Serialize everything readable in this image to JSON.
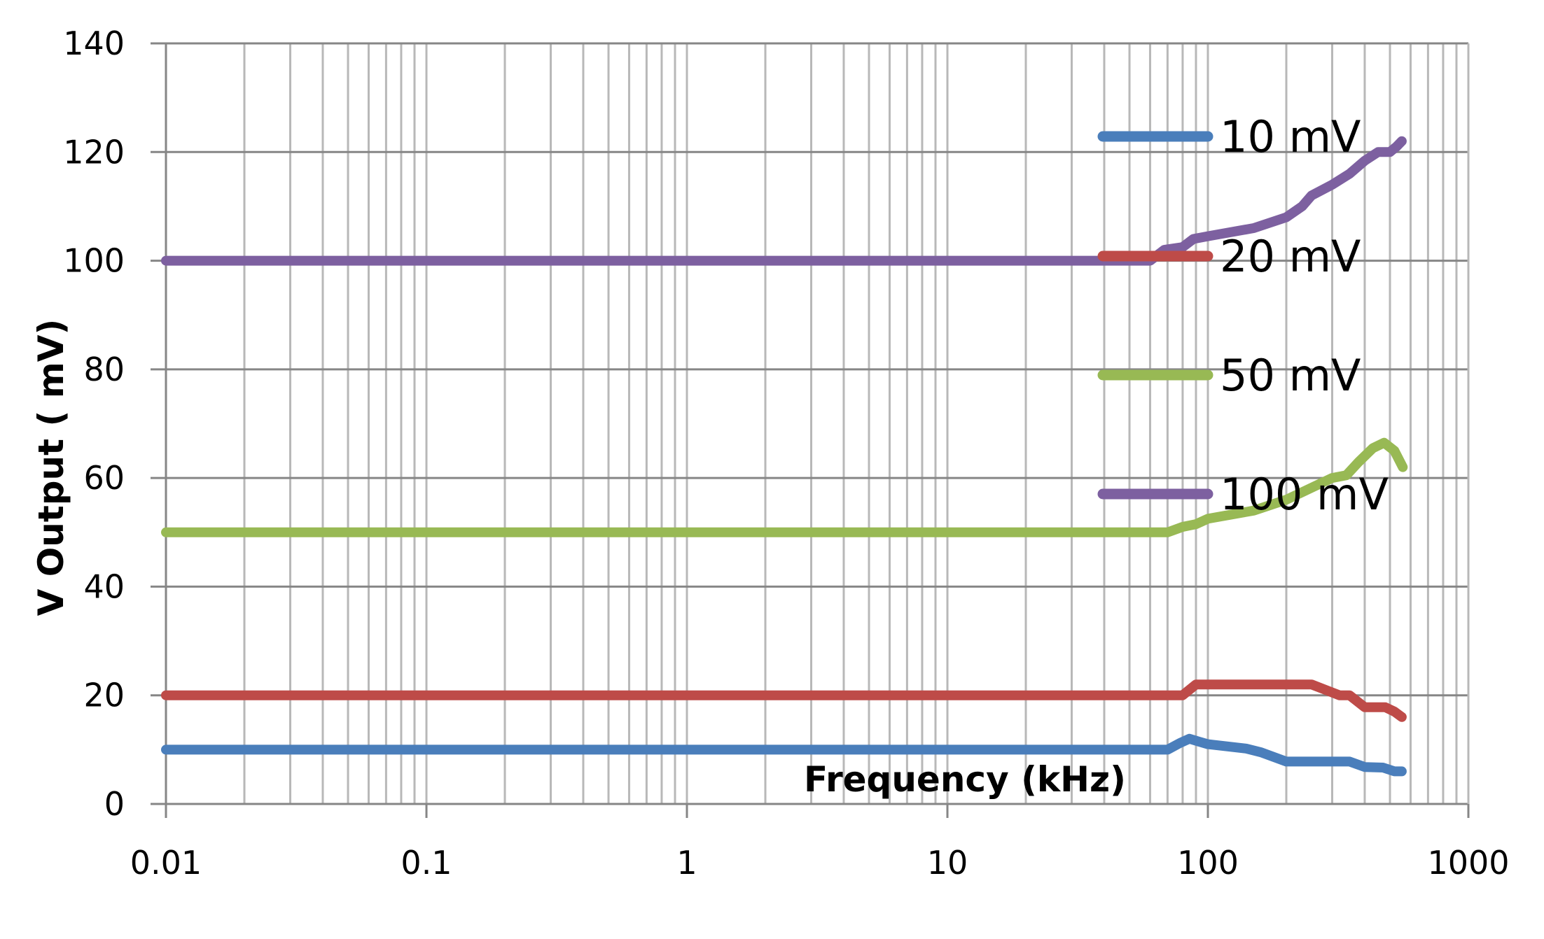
{
  "chart_data": {
    "type": "line",
    "title": "",
    "xlabel": "Frequency (kHz)",
    "ylabel": "V Output ( mV)",
    "xscale": "log",
    "xlim": [
      0.01,
      1000
    ],
    "ylim": [
      0,
      140
    ],
    "x_ticks": [
      0.01,
      0.1,
      1,
      10,
      100,
      1000
    ],
    "x_tick_labels": [
      "0.01",
      "0.1",
      "1",
      "10",
      "100",
      "1000"
    ],
    "y_ticks": [
      0,
      20,
      40,
      60,
      80,
      100,
      120,
      140
    ],
    "y_tick_labels": [
      "0",
      "20",
      "40",
      "60",
      "80",
      "100",
      "120",
      "140"
    ],
    "grid": {
      "major_y": true,
      "major_x": true,
      "minor_x": true
    },
    "legend_position": "upper-right-inside",
    "series": [
      {
        "name": "10 mV",
        "color": "#4a7ebb",
        "points": [
          [
            0.01,
            10
          ],
          [
            70,
            10
          ],
          [
            78,
            11.2
          ],
          [
            85,
            12
          ],
          [
            92,
            11.5
          ],
          [
            100,
            11
          ],
          [
            140,
            10.2
          ],
          [
            160,
            9.5
          ],
          [
            200,
            7.8
          ],
          [
            250,
            7.8
          ],
          [
            350,
            7.8
          ],
          [
            400,
            6.8
          ],
          [
            470,
            6.7
          ],
          [
            520,
            6.0
          ],
          [
            555,
            6.0
          ]
        ]
      },
      {
        "name": "20 mV",
        "color": "#be4b48",
        "points": [
          [
            0.01,
            20
          ],
          [
            80,
            20
          ],
          [
            90,
            22
          ],
          [
            100,
            22
          ],
          [
            250,
            22
          ],
          [
            290,
            20.8
          ],
          [
            320,
            20
          ],
          [
            350,
            20
          ],
          [
            400,
            17.8
          ],
          [
            480,
            17.8
          ],
          [
            520,
            17
          ],
          [
            555,
            16
          ]
        ]
      },
      {
        "name": "50 mV",
        "color": "#98b954",
        "points": [
          [
            0.01,
            50
          ],
          [
            70,
            50
          ],
          [
            80,
            51
          ],
          [
            90,
            51.5
          ],
          [
            100,
            52.5
          ],
          [
            150,
            54
          ],
          [
            200,
            56
          ],
          [
            300,
            60
          ],
          [
            340,
            60.5
          ],
          [
            380,
            63
          ],
          [
            430,
            65.5
          ],
          [
            475,
            66.5
          ],
          [
            520,
            65
          ],
          [
            560,
            62
          ]
        ]
      },
      {
        "name": "100 mV",
        "color": "#7d60a0",
        "points": [
          [
            0.01,
            100
          ],
          [
            60,
            100
          ],
          [
            68,
            102
          ],
          [
            80,
            102.5
          ],
          [
            88,
            104
          ],
          [
            100,
            104.5
          ],
          [
            150,
            106
          ],
          [
            200,
            108
          ],
          [
            230,
            110
          ],
          [
            250,
            112
          ],
          [
            300,
            114
          ],
          [
            350,
            116
          ],
          [
            400,
            118.4
          ],
          [
            450,
            120
          ],
          [
            500,
            120
          ],
          [
            530,
            121
          ],
          [
            555,
            122
          ]
        ]
      }
    ]
  },
  "legend": {
    "items": [
      {
        "label": "10 mV",
        "color": "#4a7ebb"
      },
      {
        "label": "20 mV",
        "color": "#be4b48"
      },
      {
        "label": "50 mV",
        "color": "#98b954"
      },
      {
        "label": "100 mV",
        "color": "#7d60a0"
      }
    ]
  },
  "axes": {
    "y_title": "V Output ( mV)",
    "x_title": "Frequency (kHz)"
  },
  "colors": {
    "axis": "#868686",
    "minor_grid": "#b8b8b8",
    "major_grid": "#868686"
  }
}
